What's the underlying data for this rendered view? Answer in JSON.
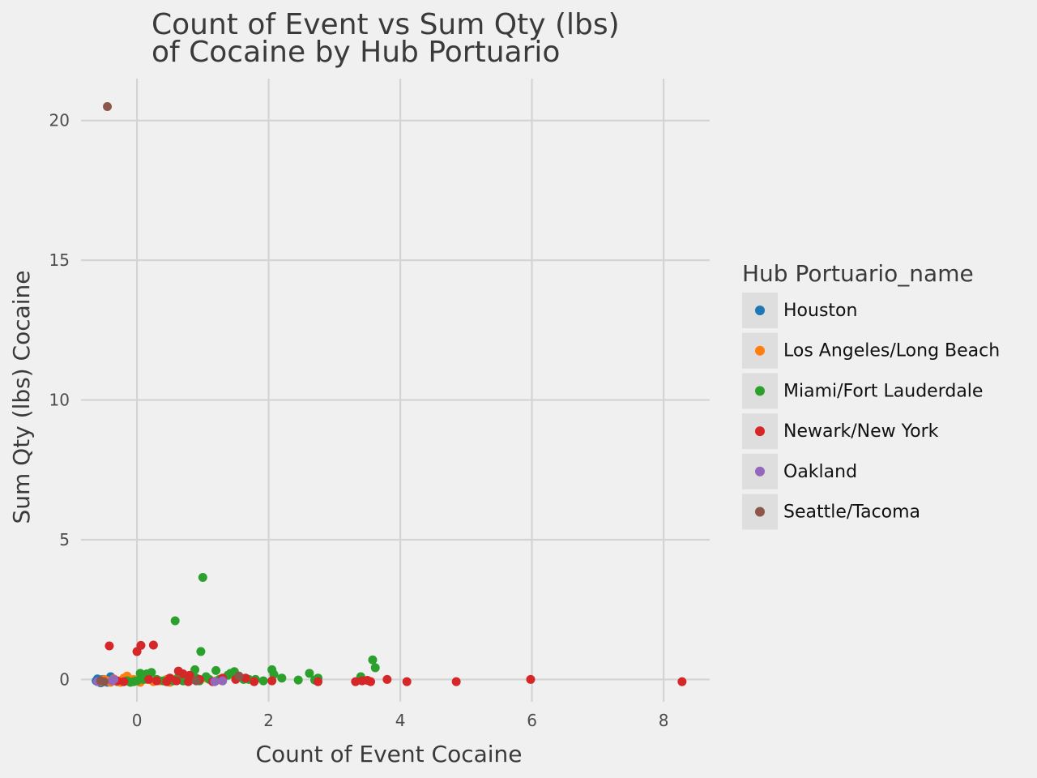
{
  "chart_data": {
    "type": "scatter",
    "title": [
      "Count of Event vs Sum Qty (lbs)",
      "of Cocaine by Hub Portuario"
    ],
    "xlabel": "Count of Event Cocaine",
    "ylabel": "Sum Qty (lbs) Cocaine",
    "xlim": [
      -0.85,
      8.7
    ],
    "ylim": [
      -0.8,
      21.5
    ],
    "xticks": [
      0,
      2,
      4,
      6,
      8
    ],
    "yticks": [
      0,
      5,
      10,
      15,
      20
    ],
    "grid": true,
    "legend": {
      "title": "Hub Portuario_name",
      "placement": "right"
    },
    "series": [
      {
        "name": "Houston",
        "color": "#1f77b4",
        "points": [
          [
            -0.62,
            -0.05
          ],
          [
            -0.58,
            -0.08
          ],
          [
            -0.52,
            0.0
          ],
          [
            -0.48,
            -0.06
          ],
          [
            -0.45,
            -0.1
          ],
          [
            -0.4,
            0.1
          ],
          [
            -0.36,
            -0.03
          ],
          [
            -0.3,
            -0.08
          ],
          [
            -0.55,
            -0.12
          ],
          [
            -0.6,
            0.02
          ]
        ]
      },
      {
        "name": "Los Angeles/Long Beach",
        "color": "#ff7f0e",
        "points": [
          [
            -0.55,
            -0.08
          ],
          [
            -0.5,
            0.0
          ],
          [
            -0.45,
            -0.05
          ],
          [
            -0.4,
            -0.1
          ],
          [
            -0.35,
            0.02
          ],
          [
            -0.3,
            -0.07
          ],
          [
            -0.25,
            -0.1
          ],
          [
            -0.2,
            0.05
          ],
          [
            -0.15,
            0.12
          ],
          [
            -0.1,
            -0.05
          ],
          [
            -0.05,
            0.0
          ],
          [
            0.05,
            -0.1
          ],
          [
            0.15,
            0.0
          ],
          [
            0.25,
            -0.08
          ],
          [
            0.35,
            -0.05
          ],
          [
            0.45,
            0.0
          ],
          [
            0.5,
            -0.1
          ],
          [
            0.6,
            0.02
          ],
          [
            0.7,
            -0.05
          ],
          [
            0.85,
            0.0
          ],
          [
            1.05,
            0.05
          ],
          [
            1.2,
            -0.05
          ]
        ]
      },
      {
        "name": "Miami/Fort Lauderdale",
        "color": "#2ca02c",
        "points": [
          [
            0.58,
            2.1
          ],
          [
            1.0,
            3.65
          ],
          [
            0.97,
            1.0
          ],
          [
            0.05,
            0.22
          ],
          [
            0.15,
            0.2
          ],
          [
            0.22,
            0.25
          ],
          [
            0.3,
            0.0
          ],
          [
            0.4,
            -0.05
          ],
          [
            0.55,
            -0.05
          ],
          [
            0.62,
            0.05
          ],
          [
            0.7,
            -0.05
          ],
          [
            0.75,
            -0.05
          ],
          [
            0.8,
            0.0
          ],
          [
            0.85,
            0.05
          ],
          [
            0.88,
            0.35
          ],
          [
            0.9,
            0.05
          ],
          [
            0.95,
            -0.05
          ],
          [
            1.05,
            0.1
          ],
          [
            1.1,
            0.0
          ],
          [
            1.2,
            0.32
          ],
          [
            1.25,
            0.0
          ],
          [
            1.3,
            -0.05
          ],
          [
            1.38,
            0.15
          ],
          [
            1.42,
            0.22
          ],
          [
            1.48,
            0.28
          ],
          [
            1.55,
            0.1
          ],
          [
            1.62,
            0.0
          ],
          [
            1.7,
            0.0
          ],
          [
            1.8,
            0.0
          ],
          [
            1.92,
            -0.05
          ],
          [
            2.05,
            0.35
          ],
          [
            2.08,
            0.18
          ],
          [
            2.2,
            0.05
          ],
          [
            2.45,
            -0.02
          ],
          [
            2.62,
            0.22
          ],
          [
            2.7,
            -0.02
          ],
          [
            2.75,
            0.05
          ],
          [
            3.4,
            0.1
          ],
          [
            3.58,
            0.7
          ],
          [
            3.62,
            0.42
          ],
          [
            0.0,
            -0.05
          ],
          [
            -0.05,
            -0.08
          ],
          [
            -0.1,
            -0.1
          ],
          [
            -0.15,
            -0.05
          ],
          [
            0.1,
            0.0
          ]
        ]
      },
      {
        "name": "Newark/New York",
        "color": "#d62728",
        "points": [
          [
            -0.42,
            1.2
          ],
          [
            0.0,
            1.0
          ],
          [
            0.06,
            1.22
          ],
          [
            0.25,
            1.23
          ],
          [
            0.63,
            0.3
          ],
          [
            0.7,
            0.2
          ],
          [
            0.8,
            0.15
          ],
          [
            0.18,
            0.0
          ],
          [
            0.3,
            -0.05
          ],
          [
            0.45,
            -0.08
          ],
          [
            0.5,
            0.05
          ],
          [
            0.6,
            -0.05
          ],
          [
            0.78,
            -0.08
          ],
          [
            0.95,
            0.0
          ],
          [
            1.15,
            -0.08
          ],
          [
            1.3,
            0.05
          ],
          [
            1.5,
            0.0
          ],
          [
            1.65,
            0.05
          ],
          [
            1.78,
            -0.08
          ],
          [
            2.05,
            -0.05
          ],
          [
            2.75,
            -0.08
          ],
          [
            3.32,
            -0.08
          ],
          [
            3.42,
            -0.05
          ],
          [
            3.5,
            -0.03
          ],
          [
            3.55,
            -0.08
          ],
          [
            3.8,
            0.0
          ],
          [
            4.1,
            -0.08
          ],
          [
            4.85,
            -0.08
          ],
          [
            5.98,
            0.0
          ],
          [
            8.28,
            -0.08
          ],
          [
            -0.3,
            -0.05
          ],
          [
            -0.2,
            -0.08
          ]
        ]
      },
      {
        "name": "Oakland",
        "color": "#9467bd",
        "points": [
          [
            -0.38,
            -0.05
          ],
          [
            -0.35,
            0.0
          ],
          [
            -0.6,
            -0.08
          ],
          [
            1.18,
            -0.08
          ],
          [
            1.3,
            -0.05
          ]
        ]
      },
      {
        "name": "Seattle/Tacoma",
        "color": "#8c564b",
        "points": [
          [
            -0.45,
            20.5
          ],
          [
            -0.5,
            -0.08
          ],
          [
            -0.55,
            -0.05
          ],
          [
            1.55,
            0.12
          ],
          [
            0.9,
            -0.05
          ]
        ]
      }
    ]
  }
}
